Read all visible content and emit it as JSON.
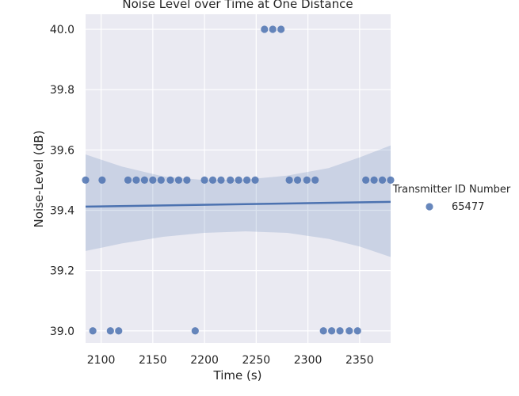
{
  "chart_data": {
    "type": "scatter",
    "title": "Noise Level over Time at One Distance",
    "xlabel": "Time (s)",
    "ylabel": "Noise-Level (dB)",
    "xlim": [
      2085,
      2380
    ],
    "ylim": [
      38.96,
      40.05
    ],
    "xticks": [
      2100,
      2150,
      2200,
      2250,
      2300,
      2350
    ],
    "yticks": [
      39.0,
      39.2,
      39.4,
      39.6,
      39.8,
      40.0
    ],
    "yticks_labels": [
      "39.0",
      "39.2",
      "39.4",
      "39.6",
      "39.8",
      "40.0"
    ],
    "grid": true,
    "legend_title": "Transmitter ID Number",
    "legend_placement": "right",
    "colors": {
      "point": "#4c72b0",
      "band": "#aebad2",
      "background": "#eaeaf2",
      "grid": "#ffffff"
    },
    "series": [
      {
        "name": "65477",
        "x": [
          2085,
          2101,
          2126,
          2134,
          2142,
          2150,
          2158,
          2167,
          2175,
          2183,
          2200,
          2208,
          2216,
          2225,
          2233,
          2241,
          2249,
          2282,
          2290,
          2299,
          2307,
          2356,
          2364,
          2372,
          2380,
          2092,
          2109,
          2117,
          2191,
          2315,
          2323,
          2331,
          2340,
          2348,
          2258,
          2266,
          2274
        ],
        "y": [
          39.5,
          39.5,
          39.5,
          39.5,
          39.5,
          39.5,
          39.5,
          39.5,
          39.5,
          39.5,
          39.5,
          39.5,
          39.5,
          39.5,
          39.5,
          39.5,
          39.5,
          39.5,
          39.5,
          39.5,
          39.5,
          39.5,
          39.5,
          39.5,
          39.5,
          39.0,
          39.0,
          39.0,
          39.0,
          39.0,
          39.0,
          39.0,
          39.0,
          39.0,
          40.0,
          40.0,
          40.0
        ]
      }
    ],
    "regression": {
      "x": [
        2085,
        2380
      ],
      "y": [
        39.412,
        39.428
      ]
    },
    "confidence_band": {
      "x": [
        2085,
        2120,
        2160,
        2200,
        2240,
        2280,
        2320,
        2350,
        2380
      ],
      "upper": [
        39.585,
        39.545,
        39.512,
        39.5,
        39.502,
        39.515,
        39.54,
        39.575,
        39.615
      ],
      "lower": [
        39.265,
        39.29,
        39.312,
        39.325,
        39.33,
        39.325,
        39.305,
        39.28,
        39.245
      ]
    }
  }
}
